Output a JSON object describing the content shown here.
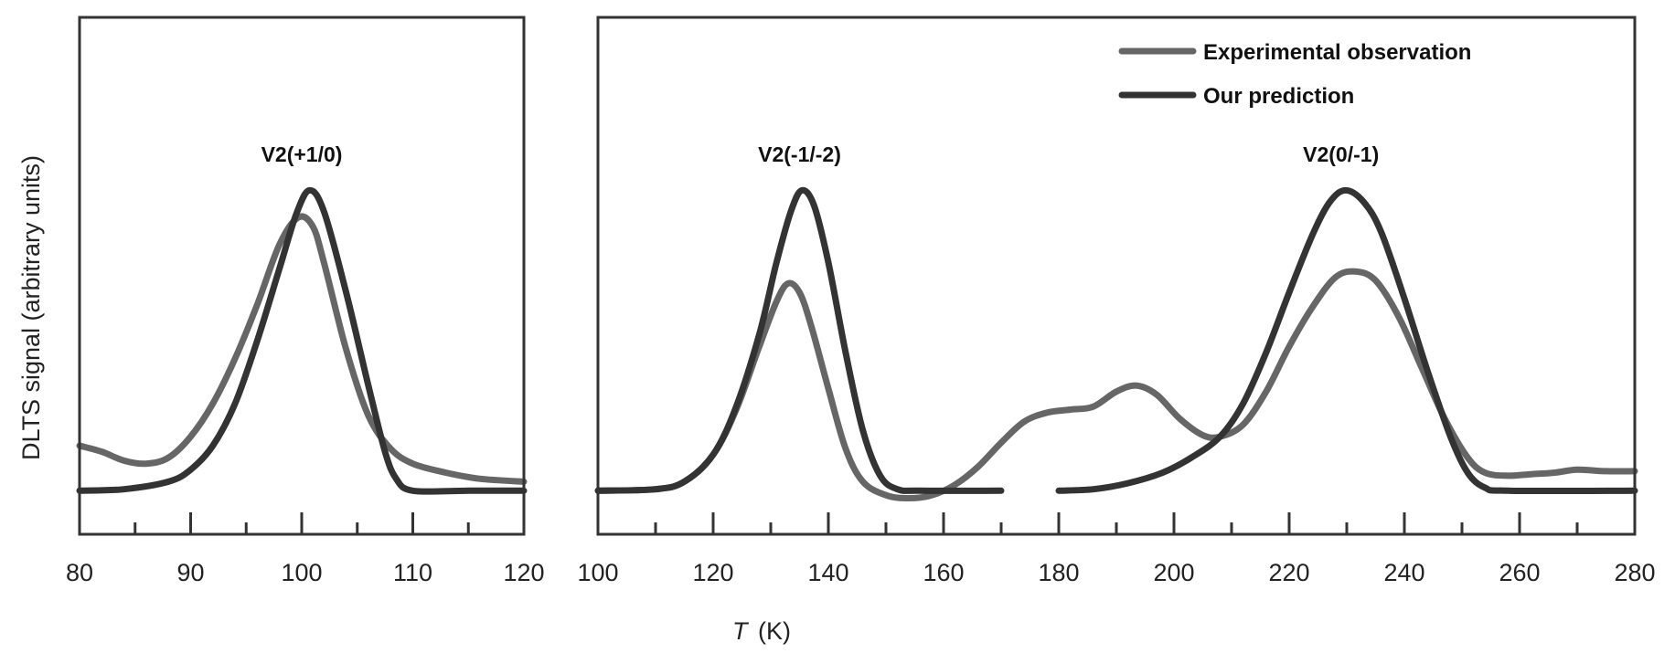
{
  "chart_data": {
    "type": "line",
    "title": "",
    "ylabel": "DLTS signal (arbitrary units)",
    "xlabel_italic": "T",
    "xlabel_unit": "(K)",
    "xlabel": "T (K)",
    "ylim": [
      -0.145,
      1.576
    ],
    "grid": false,
    "legend": {
      "placement": "top-right",
      "entries": [
        {
          "name": "Experimental observation",
          "color": "#666666"
        },
        {
          "name": "Our prediction",
          "color": "#333333"
        }
      ]
    },
    "panels": [
      {
        "name": "left",
        "xlim": [
          80,
          120
        ],
        "major_ticks": [
          80,
          90,
          100,
          110,
          120
        ],
        "minor_ticks": [
          85,
          95,
          105,
          115
        ],
        "tick_labels": [
          "80",
          "90",
          "100",
          "110",
          "120"
        ],
        "annotations": [
          {
            "text": "V2(+1/0)",
            "x": 100,
            "y": 1.12
          }
        ],
        "series": [
          {
            "name": "Experimental observation",
            "color": "#666666",
            "segments": [
              [
                [
                  80,
                  0.15
                ],
                [
                  82,
                  0.13
                ],
                [
                  84,
                  0.1
                ],
                [
                  86,
                  0.09
                ],
                [
                  88,
                  0.11
                ],
                [
                  90,
                  0.18
                ],
                [
                  92,
                  0.29
                ],
                [
                  94,
                  0.44
                ],
                [
                  96,
                  0.62
                ],
                [
                  98,
                  0.82
                ],
                [
                  99.7,
                  0.91
                ],
                [
                  101,
                  0.88
                ],
                [
                  102,
                  0.76
                ],
                [
                  104,
                  0.47
                ],
                [
                  106,
                  0.25
                ],
                [
                  108,
                  0.14
                ],
                [
                  110,
                  0.09
                ],
                [
                  113,
                  0.06
                ],
                [
                  116,
                  0.04
                ],
                [
                  120,
                  0.03
                ]
              ]
            ]
          },
          {
            "name": "Our prediction",
            "color": "#333333",
            "segments": [
              [
                [
                  80,
                  0.0
                ],
                [
                  84,
                  0.005
                ],
                [
                  88,
                  0.03
                ],
                [
                  90,
                  0.07
                ],
                [
                  92,
                  0.15
                ],
                [
                  94,
                  0.29
                ],
                [
                  96,
                  0.5
                ],
                [
                  98,
                  0.74
                ],
                [
                  99.5,
                  0.92
                ],
                [
                  100.7,
                  1.0
                ],
                [
                  102,
                  0.93
                ],
                [
                  104,
                  0.66
                ],
                [
                  106,
                  0.35
                ],
                [
                  107.5,
                  0.13
                ],
                [
                  108.5,
                  0.04
                ],
                [
                  110,
                  0.0
                ],
                [
                  115,
                  0.0
                ],
                [
                  120,
                  0.0
                ]
              ]
            ]
          }
        ]
      },
      {
        "name": "right",
        "xlim": [
          100,
          280
        ],
        "major_ticks": [
          100,
          120,
          140,
          160,
          180,
          200,
          220,
          240,
          260,
          280
        ],
        "minor_ticks": [
          110,
          130,
          150,
          170,
          190,
          210,
          230,
          250,
          270
        ],
        "tick_labels": [
          "100",
          "120",
          "140",
          "160",
          "180",
          "200",
          "220",
          "240",
          "260",
          "280"
        ],
        "annotations": [
          {
            "text": "V2(-1/-2)",
            "x": 135,
            "y": 1.12
          },
          {
            "text": "V2(0/-1)",
            "x": 229,
            "y": 1.12
          }
        ],
        "series": [
          {
            "name": "Experimental observation",
            "color": "#666666",
            "segments": [
              [
                [
                  100,
                  0.0
                ],
                [
                  110,
                  0.005
                ],
                [
                  115,
                  0.03
                ],
                [
                  120,
                  0.12
                ],
                [
                  124,
                  0.27
                ],
                [
                  128,
                  0.48
                ],
                [
                  131,
                  0.63
                ],
                [
                  133,
                  0.69
                ],
                [
                  135,
                  0.66
                ],
                [
                  137,
                  0.55
                ],
                [
                  140,
                  0.34
                ],
                [
                  143,
                  0.14
                ],
                [
                  146,
                  0.03
                ],
                [
                  150,
                  -0.015
                ],
                [
                  154,
                  -0.025
                ],
                [
                  158,
                  -0.015
                ],
                [
                  162,
                  0.02
                ],
                [
                  166,
                  0.08
                ],
                [
                  170,
                  0.16
                ],
                [
                  174,
                  0.23
                ],
                [
                  178,
                  0.26
                ],
                [
                  182,
                  0.27
                ],
                [
                  186,
                  0.28
                ],
                [
                  190,
                  0.33
                ],
                [
                  193.5,
                  0.35
                ],
                [
                  197,
                  0.32
                ],
                [
                  201,
                  0.24
                ],
                [
                  205,
                  0.185
                ],
                [
                  208,
                  0.18
                ],
                [
                  212,
                  0.22
                ],
                [
                  216,
                  0.33
                ],
                [
                  220,
                  0.48
                ],
                [
                  224,
                  0.61
                ],
                [
                  228,
                  0.71
                ],
                [
                  231.5,
                  0.73
                ],
                [
                  235,
                  0.7
                ],
                [
                  239,
                  0.58
                ],
                [
                  243,
                  0.41
                ],
                [
                  247,
                  0.24
                ],
                [
                  251,
                  0.11
                ],
                [
                  254,
                  0.06
                ],
                [
                  258,
                  0.05
                ],
                [
                  262,
                  0.055
                ],
                [
                  266,
                  0.06
                ],
                [
                  270,
                  0.07
                ],
                [
                  275,
                  0.065
                ],
                [
                  280,
                  0.065
                ]
              ]
            ]
          },
          {
            "name": "Our prediction",
            "color": "#333333",
            "segments": [
              [
                [
                  100,
                  0.0
                ],
                [
                  110,
                  0.005
                ],
                [
                  115,
                  0.03
                ],
                [
                  120,
                  0.12
                ],
                [
                  124,
                  0.28
                ],
                [
                  128,
                  0.52
                ],
                [
                  131,
                  0.76
                ],
                [
                  133.5,
                  0.93
                ],
                [
                  135.4,
                  1.0
                ],
                [
                  137.5,
                  0.95
                ],
                [
                  140,
                  0.76
                ],
                [
                  143,
                  0.46
                ],
                [
                  146,
                  0.2
                ],
                [
                  149,
                  0.05
                ],
                [
                  152,
                  0.005
                ],
                [
                  156,
                  0.0
                ],
                [
                  170,
                  0.0
                ]
              ],
              [
                [
                  180,
                  0.0
                ],
                [
                  186,
                  0.005
                ],
                [
                  192,
                  0.025
                ],
                [
                  198,
                  0.06
                ],
                [
                  203,
                  0.11
                ],
                [
                  208,
                  0.18
                ],
                [
                  212,
                  0.29
                ],
                [
                  216,
                  0.46
                ],
                [
                  220,
                  0.66
                ],
                [
                  224,
                  0.85
                ],
                [
                  227,
                  0.96
                ],
                [
                  229.8,
                  1.0
                ],
                [
                  233,
                  0.96
                ],
                [
                  236,
                  0.86
                ],
                [
                  240,
                  0.64
                ],
                [
                  244,
                  0.4
                ],
                [
                  248,
                  0.18
                ],
                [
                  251,
                  0.06
                ],
                [
                  254,
                  0.01
                ],
                [
                  258,
                  0.0
                ],
                [
                  280,
                  0.0
                ]
              ]
            ]
          }
        ]
      }
    ]
  }
}
